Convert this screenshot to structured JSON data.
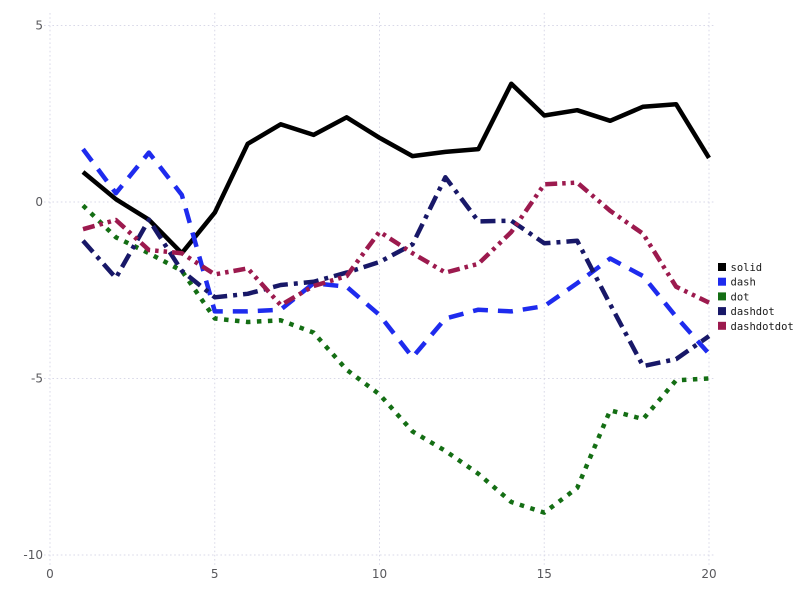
{
  "chart_data": {
    "type": "line",
    "title": "",
    "xlabel": "",
    "ylabel": "",
    "xlim": [
      0,
      20.6
    ],
    "ylim": [
      -10.5,
      5.4
    ],
    "x_ticks": [
      0,
      5,
      10,
      15,
      20
    ],
    "y_ticks": [
      5,
      0,
      -5,
      -10
    ],
    "grid": "dotted",
    "legend_position": "right-center",
    "x": [
      1,
      2,
      3,
      4,
      5,
      6,
      7,
      8,
      9,
      10,
      11,
      12,
      13,
      14,
      15,
      16,
      17,
      18,
      19,
      20
    ],
    "series": [
      {
        "name": "solid",
        "line_style": "solid",
        "color": "#000000",
        "values": [
          0.85,
          0.08,
          -0.5,
          -1.45,
          -0.3,
          1.65,
          2.2,
          1.9,
          2.4,
          1.82,
          1.3,
          1.42,
          1.5,
          3.35,
          2.45,
          2.6,
          2.3,
          2.7,
          2.77,
          1.25
        ]
      },
      {
        "name": "dash",
        "line_style": "dash",
        "color": "#1e2bee",
        "values": [
          1.5,
          0.25,
          1.4,
          0.2,
          -3.1,
          -3.1,
          -3.05,
          -2.3,
          -2.4,
          -3.2,
          -4.4,
          -3.3,
          -3.05,
          -3.1,
          -2.95,
          -2.3,
          -1.6,
          -2.1,
          -3.25,
          -4.3
        ]
      },
      {
        "name": "dot",
        "line_style": "dot",
        "color": "#146e14",
        "values": [
          -0.1,
          -1.0,
          -1.45,
          -1.95,
          -3.3,
          -3.4,
          -3.35,
          -3.7,
          -4.75,
          -5.45,
          -6.5,
          -7.05,
          -7.7,
          -8.5,
          -8.8,
          -8.1,
          -5.9,
          -6.15,
          -5.05,
          -5.0
        ]
      },
      {
        "name": "dashdot",
        "line_style": "dashdot",
        "color": "#181868",
        "values": [
          -1.1,
          -2.15,
          -0.5,
          -1.95,
          -2.7,
          -2.6,
          -2.35,
          -2.26,
          -2.0,
          -1.7,
          -1.2,
          0.7,
          -0.55,
          -0.53,
          -1.17,
          -1.1,
          -2.9,
          -4.65,
          -4.45,
          -3.8
        ]
      },
      {
        "name": "dashdotdot",
        "line_style": "dashdotdot",
        "color": "#9c1a4e",
        "values": [
          -0.77,
          -0.51,
          -1.36,
          -1.45,
          -2.05,
          -1.88,
          -2.92,
          -2.38,
          -2.1,
          -0.84,
          -1.45,
          -2.0,
          -1.75,
          -0.85,
          0.5,
          0.55,
          -0.25,
          -0.9,
          -2.4,
          -2.85
        ]
      }
    ],
    "legend_entries": [
      "solid",
      "dash",
      "dot",
      "dashdot",
      "dashdotdot"
    ]
  },
  "style": {
    "tick_label_color": "#58585c",
    "legend_text_color": "#1a1a1a",
    "grid_color": "#d9d9e8",
    "background": "#ffffff"
  }
}
